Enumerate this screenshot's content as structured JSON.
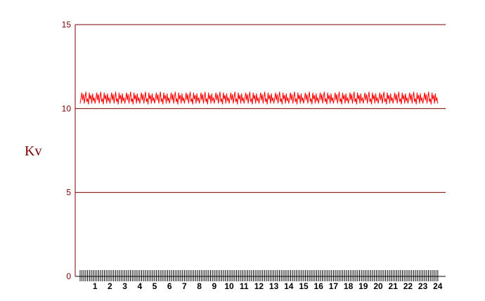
{
  "chart_data": {
    "type": "line",
    "ylabel": "Kv",
    "xlabel": "",
    "title": "",
    "ylim": [
      0,
      15
    ],
    "xlim": [
      0,
      24
    ],
    "yticks": [
      0,
      5,
      10,
      15
    ],
    "ytick_labels": [
      "0",
      "5",
      "10",
      "15"
    ],
    "xticks": [
      1,
      2,
      3,
      4,
      5,
      6,
      7,
      8,
      9,
      10,
      11,
      12,
      13,
      14,
      15,
      16,
      17,
      18,
      19,
      20,
      21,
      22,
      23,
      24
    ],
    "xtick_labels": [
      "1",
      "2",
      "3",
      "4",
      "5",
      "6",
      "7",
      "8",
      "9",
      "10",
      "11",
      "12",
      "13",
      "14",
      "15",
      "16",
      "17",
      "18",
      "19",
      "20",
      "21",
      "22",
      "23",
      "24"
    ],
    "grid": true,
    "colors": {
      "axis": "#7a0000",
      "series": "#ff0000",
      "tick_text": "#000000"
    },
    "series": [
      {
        "name": "",
        "points_per_hour": 18,
        "value_range": [
          10.2,
          11.0
        ],
        "pattern": [
          10.3,
          10.6,
          10.95,
          10.5,
          10.85,
          10.3,
          10.7,
          11.0,
          10.4,
          10.6,
          10.25,
          10.95,
          10.55,
          10.8,
          10.3,
          10.9,
          10.45,
          10.65
        ]
      }
    ]
  }
}
